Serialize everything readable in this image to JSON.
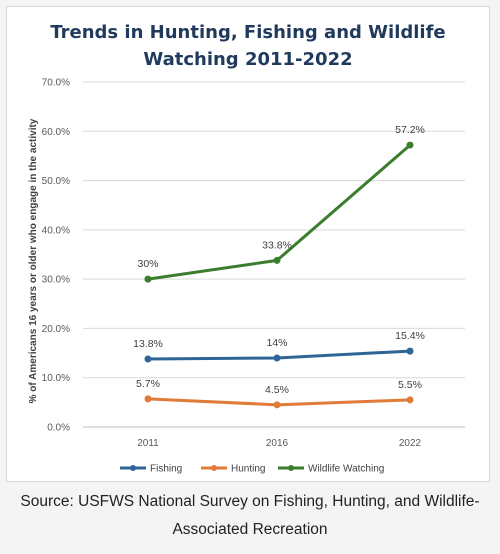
{
  "chart_data": {
    "type": "line",
    "title": [
      "Trends in Hunting, Fishing and Wildlife",
      "Watching 2011-2022"
    ],
    "ylabel": "% of Americans 16 years or older who engage in the activity",
    "xlabel": "",
    "categories": [
      "2011",
      "2016",
      "2022"
    ],
    "ylim": [
      0,
      70
    ],
    "yticks": [
      "0.0%",
      "10.0%",
      "20.0%",
      "30.0%",
      "40.0%",
      "50.0%",
      "60.0%",
      "70.0%"
    ],
    "grid": true,
    "legend_position": "bottom",
    "series": [
      {
        "name": "Fishing",
        "values": [
          13.8,
          14,
          15.4
        ],
        "labels": [
          "13.8%",
          "14%",
          "15.4%"
        ],
        "color": "#2e6496"
      },
      {
        "name": "Hunting",
        "values": [
          5.7,
          4.5,
          5.5
        ],
        "labels": [
          "5.7%",
          "4.5%",
          "5.5%"
        ],
        "color": "#e07b39"
      },
      {
        "name": "Wildlife Watching",
        "values": [
          30,
          33.8,
          57.2
        ],
        "labels": [
          "30%",
          "33.8%",
          "57.2%"
        ],
        "color": "#3a7d2c"
      }
    ]
  },
  "caption": {
    "line1": "Source: USFWS National Survey on Fishing, Hunting, and Wildlife-",
    "line2": "Associated Recreation"
  }
}
